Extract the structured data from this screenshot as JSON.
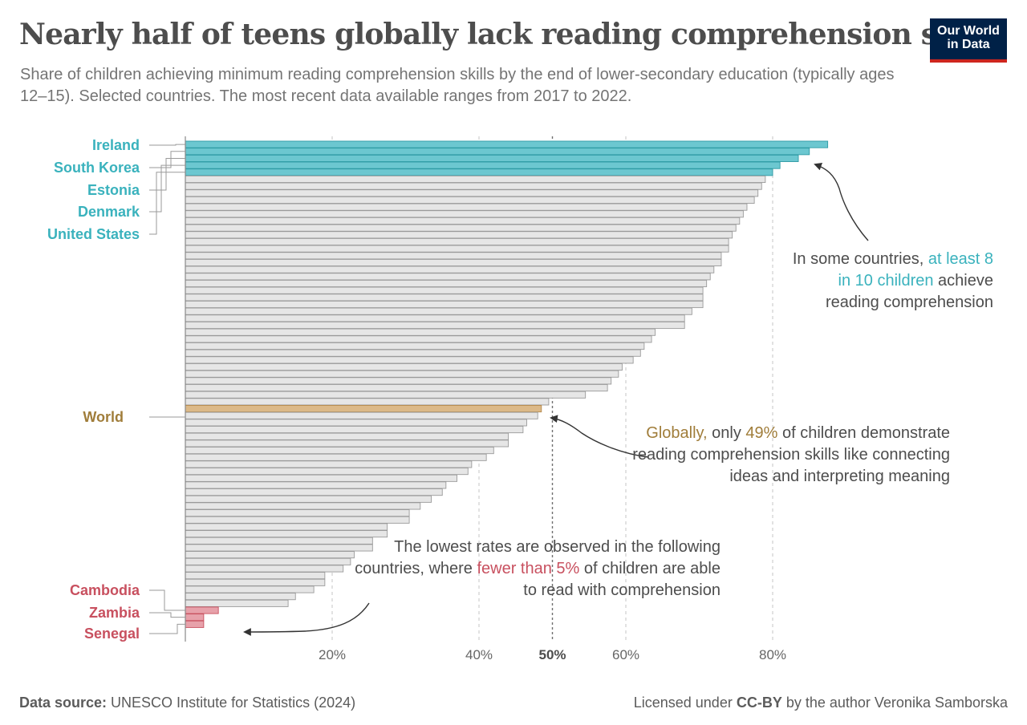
{
  "header": {
    "title": "Nearly half of teens globally lack reading comprehension skills",
    "subtitle": "Share of children achieving minimum reading comprehension skills by the end of lower-secondary education (typically ages 12–15). Selected countries. The most recent data available ranges from 2017 to 2022."
  },
  "logo": {
    "line1": "Our World",
    "line2": "in Data"
  },
  "colors": {
    "highlight_top": "#6cc7d0",
    "highlight_top_text": "#3ab2bd",
    "world": "#dcb988",
    "world_text": "#a07d3a",
    "highlight_low": "#e7a1aa",
    "highlight_low_text": "#c8505f",
    "other_bar": "#e6e6e6",
    "other_bar_stroke": "#9a9a9a"
  },
  "annotations": {
    "high": {
      "pre": "In some countries, ",
      "highlight": "at least 8 in 10 children",
      "post": " achieve reading comprehension"
    },
    "world": {
      "highlight": "Globally,",
      "mid": " only ",
      "highlight2": "49%",
      "post": " of children demonstrate reading comprehension skills like connecting ideas and interpreting meaning"
    },
    "low": {
      "pre": "The lowest rates are observed in the following countries, where ",
      "highlight": "fewer than 5%",
      "post": " of children are able to read with comprehension"
    }
  },
  "footer": {
    "source_label": "Data source:",
    "source_text": " UNESCO Institute for Statistics (2024)",
    "license_pre": "Licensed under ",
    "license_bold": "CC-BY",
    "license_post": " by the author Veronika Samborska"
  },
  "chart_data": {
    "type": "bar",
    "orientation": "horizontal",
    "xlim": [
      0,
      100
    ],
    "xticks": [
      20,
      40,
      50,
      60,
      80
    ],
    "xtick_labels": [
      "20%",
      "40%",
      "50%",
      "60%",
      "80%"
    ],
    "reference_line": 50,
    "grid": true,
    "labeled": [
      {
        "name": "Ireland",
        "index": 0,
        "group": "high"
      },
      {
        "name": "South Korea",
        "index": 1,
        "group": "high"
      },
      {
        "name": "Estonia",
        "index": 2,
        "group": "high"
      },
      {
        "name": "Denmark",
        "index": 3,
        "group": "high"
      },
      {
        "name": "United States",
        "index": 4,
        "group": "high"
      },
      {
        "name": "World",
        "index": 38,
        "group": "world"
      },
      {
        "name": "Cambodia",
        "index": 67,
        "group": "low"
      },
      {
        "name": "Zambia",
        "index": 68,
        "group": "low"
      },
      {
        "name": "Senegal",
        "index": 69,
        "group": "low"
      }
    ],
    "values": [
      87.5,
      85,
      83.5,
      81,
      80,
      79,
      78.5,
      78,
      77.5,
      76.5,
      76,
      75.5,
      75,
      74.5,
      74,
      74,
      73,
      73,
      72,
      71.5,
      71,
      70.5,
      70.5,
      70.5,
      69,
      68,
      68,
      64,
      63.5,
      62.5,
      62,
      61,
      59.5,
      59,
      58,
      57.5,
      54.5,
      49.5,
      48.5,
      48,
      46.5,
      46,
      44,
      44,
      42,
      41,
      39,
      38.5,
      37,
      35.5,
      35,
      33.5,
      32,
      30.5,
      30.5,
      27.5,
      27.5,
      25.5,
      25.5,
      23,
      22.5,
      21.5,
      19,
      19,
      17.5,
      15,
      14,
      4.5,
      2.5,
      2.5
    ]
  }
}
